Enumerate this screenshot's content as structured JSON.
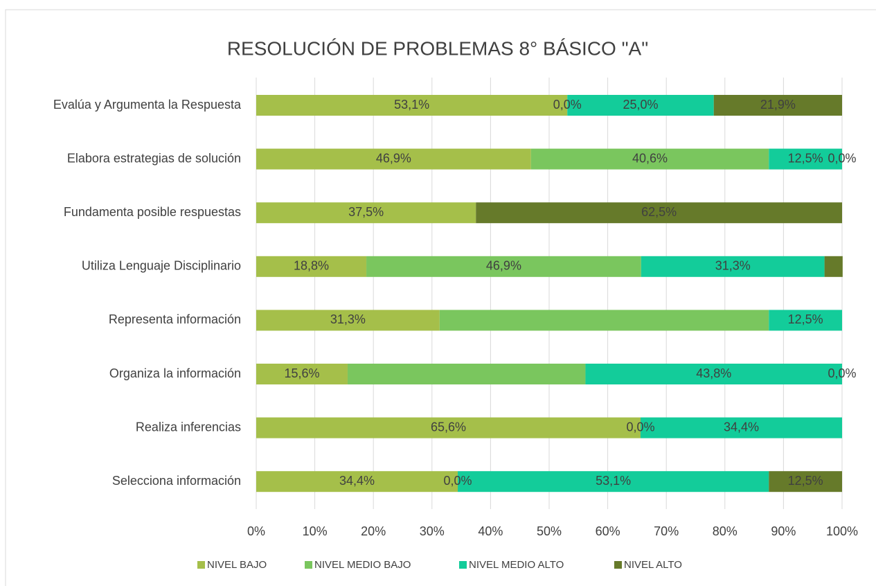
{
  "chart_data": {
    "type": "stacked-bar-horizontal",
    "title": "RESOLUCIÓN DE PROBLEMAS 8° BÁSICO \"A\"",
    "categories": [
      "Evalúa y Argumenta la Respuesta",
      "Elabora estrategias de solución",
      "Fundamenta posible respuestas",
      "Utiliza Lenguaje Disciplinario",
      "Representa información",
      "Organiza la información",
      "Realiza inferencias",
      "Selecciona información"
    ],
    "series": [
      {
        "name": "NIVEL BAJO",
        "color": "#a5bf4a",
        "values": [
          53.1,
          46.9,
          37.5,
          18.8,
          31.3,
          15.6,
          65.6,
          34.4
        ],
        "value_labels": [
          "53,1%",
          "46,9%",
          "37,5%",
          "18,8%",
          "31,3%",
          "15,6%",
          "65,6%",
          "34,4%"
        ]
      },
      {
        "name": "NIVEL MEDIO BAJO",
        "color": "#7ac65e",
        "values": [
          0.0,
          40.6,
          0,
          46.9,
          56.2,
          40.6,
          0.0,
          0.0
        ],
        "value_labels": [
          "0,0%",
          "40,6%",
          null,
          "46,9%",
          null,
          null,
          "0,0%",
          "0,0%"
        ]
      },
      {
        "name": "NIVEL MEDIO ALTO",
        "color": "#13cc9a",
        "values": [
          25.0,
          12.5,
          0,
          31.3,
          12.5,
          43.8,
          34.4,
          53.1
        ],
        "value_labels": [
          "25,0%",
          "12,5%",
          null,
          "31,3%",
          "12,5%",
          "43,8%",
          "34,4%",
          "53,1%"
        ]
      },
      {
        "name": "NIVEL ALTO",
        "color": "#667a2a",
        "values": [
          21.9,
          0.0,
          62.5,
          3.1,
          0,
          0.0,
          0,
          12.5
        ],
        "value_labels": [
          "21,9%",
          "0,0%",
          "62,5%",
          null,
          null,
          "0,0%",
          null,
          "12,5%"
        ]
      }
    ],
    "xlim": [
      0,
      100
    ],
    "xticks": [
      {
        "value": 0,
        "label": "0%"
      },
      {
        "value": 10,
        "label": "10%"
      },
      {
        "value": 20,
        "label": "20%"
      },
      {
        "value": 30,
        "label": "30%"
      },
      {
        "value": 40,
        "label": "40%"
      },
      {
        "value": 50,
        "label": "50%"
      },
      {
        "value": 60,
        "label": "60%"
      },
      {
        "value": 70,
        "label": "70%"
      },
      {
        "value": 80,
        "label": "80%"
      },
      {
        "value": 90,
        "label": "90%"
      },
      {
        "value": 100,
        "label": "100%"
      }
    ],
    "grid": true,
    "legend": "bottom"
  }
}
